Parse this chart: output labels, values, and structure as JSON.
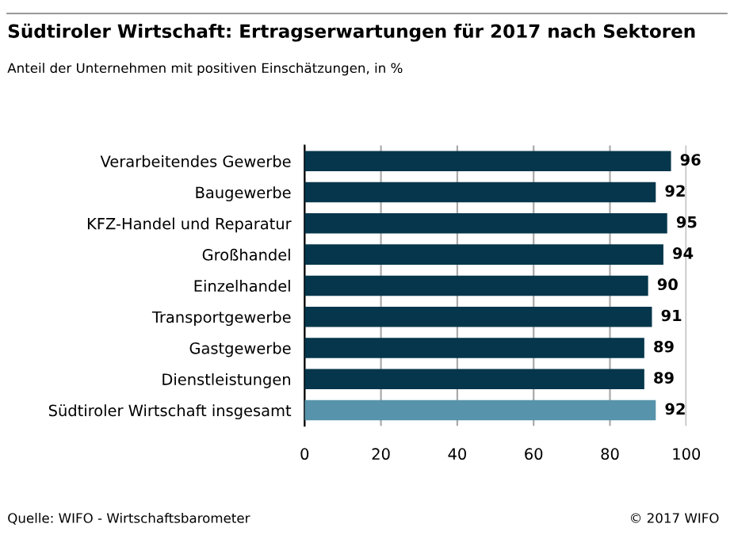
{
  "chart_data": {
    "type": "bar",
    "orientation": "horizontal",
    "title": "Südtiroler Wirtschaft: Ertragserwartungen für 2017 nach Sektoren",
    "subtitle": "Anteil der Unternehmen mit positiven Einschätzungen, in %",
    "categories": [
      "Verarbeitendes Gewerbe",
      "Baugewerbe",
      "KFZ-Handel und Reparatur",
      "Großhandel",
      "Einzelhandel",
      "Transportgewerbe",
      "Gastgewerbe",
      "Dienstleistungen",
      "Südtiroler Wirtschaft insgesamt"
    ],
    "values": [
      96,
      92,
      95,
      94,
      90,
      91,
      89,
      89,
      92
    ],
    "colors": [
      "#05364b",
      "#05364b",
      "#05364b",
      "#05364b",
      "#05364b",
      "#05364b",
      "#05364b",
      "#05364b",
      "#5793aa"
    ],
    "xlim": [
      0,
      100
    ],
    "xticks": [
      0,
      20,
      40,
      60,
      80,
      100
    ],
    "grid": "x",
    "data_labels": true,
    "annotations": [
      "Quelle: WIFO - Wirtschaftsbarometer",
      "© 2017 WIFO"
    ]
  }
}
